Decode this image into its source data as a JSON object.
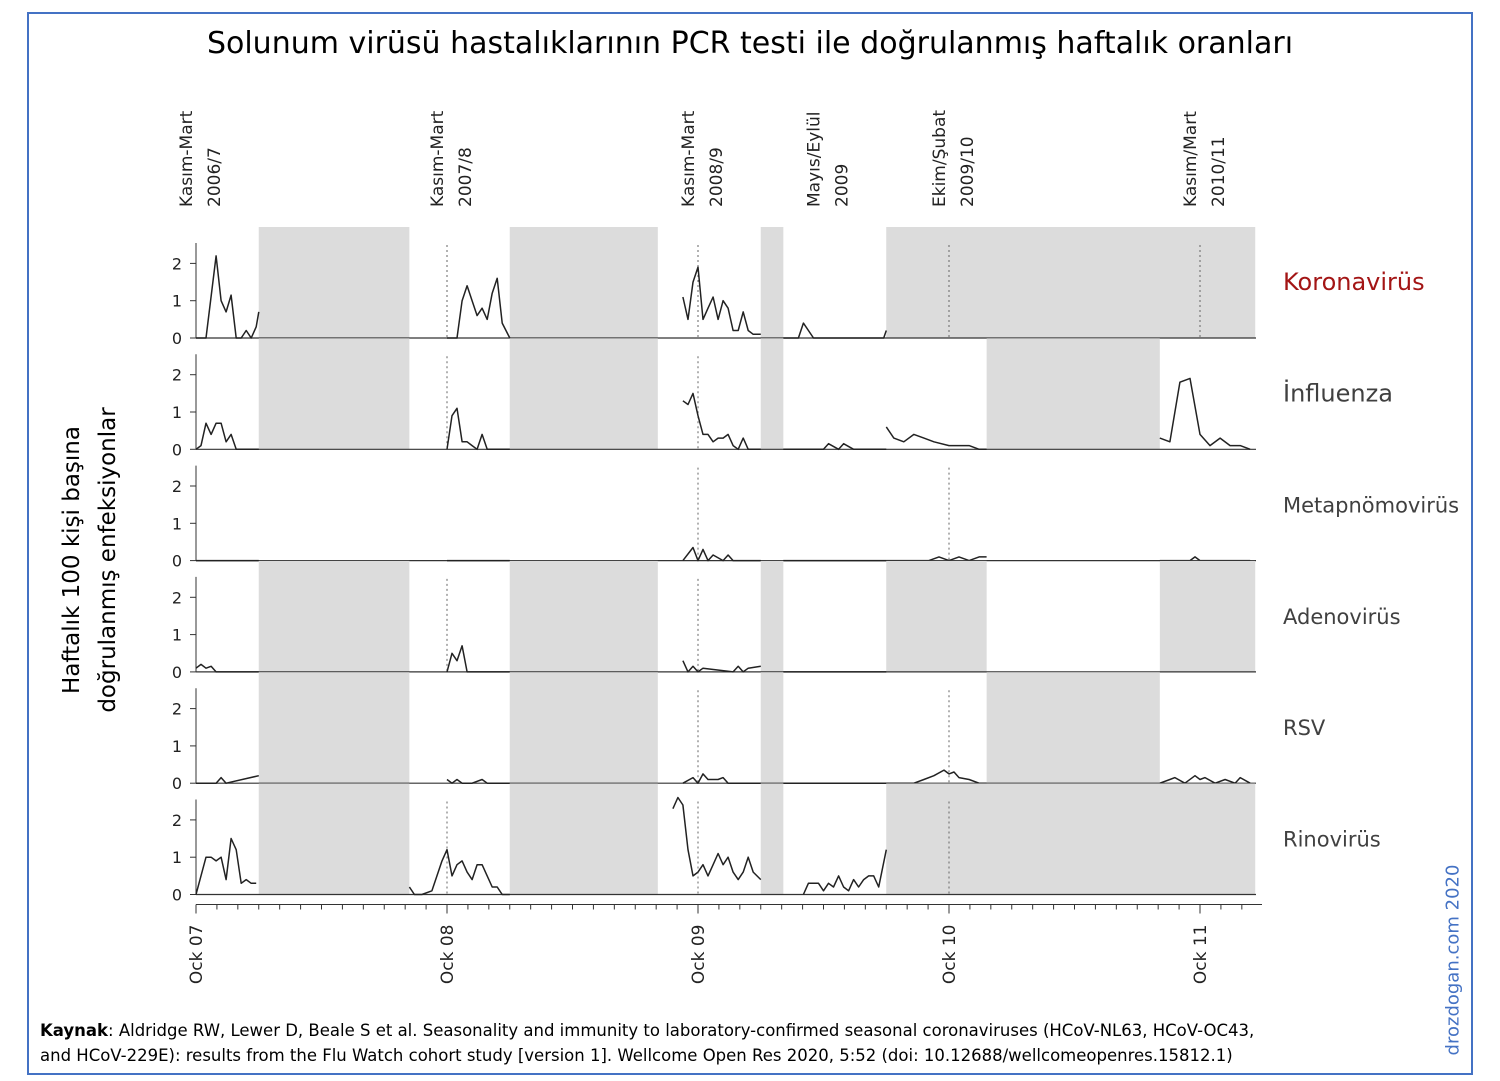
{
  "title": "Solunum virüsü hastalıklarının PCR testi ile doğrulanmış haftalık oranları",
  "ylabel_line1": "Haftalık 100 kişi başına",
  "ylabel_line2": "doğrulanmış enfeksiyonlar",
  "source_prefix": "Kaynak",
  "source_text": ": Aldridge RW, Lewer D, Beale S et al. Seasonality and immunity to laboratory-confirmed seasonal coronaviruses (HCoV-NL63, HCoV-OC43, and HCoV-229E): results from the Flu Watch cohort study [version 1]. Wellcome Open Res 2020, 5:52 (doi: 10.12688/wellcomeopenres.15812.1)",
  "credit": "drozdogan.com 2020",
  "colors": {
    "shade": "#dcdcdc",
    "line": "#222222",
    "coronavirus_label": "#a31515",
    "label": "#404040",
    "credit": "#4472c4"
  },
  "chart_data": {
    "type": "line",
    "title": "Solunum virüsü hastalıklarının PCR testi ile doğrulanmış haftalık oranları",
    "xlabel": "",
    "ylabel": "Haftalık 100 kişi başına doğrulanmış enfeksiyonlar",
    "xlim": [
      0,
      4.25
    ],
    "ylim": [
      0,
      2.5
    ],
    "yticks": [
      0,
      1,
      2
    ],
    "x_unit": "years since Oct 2007",
    "x_ticks": [
      {
        "x": 0,
        "label": "Ock 07"
      },
      {
        "x": 1,
        "label": "Ock 08"
      },
      {
        "x": 2,
        "label": "Ock 09"
      },
      {
        "x": 3,
        "label": "Ock 10"
      },
      {
        "x": 4,
        "label": "Ock 11"
      }
    ],
    "season_labels": [
      {
        "x": 0.0,
        "lines": [
          "Kasım-Mart",
          "2006/7"
        ]
      },
      {
        "x": 1.0,
        "lines": [
          "Kasım-Mart",
          "2007/8"
        ]
      },
      {
        "x": 2.0,
        "lines": [
          "Kasım-Mart",
          "2008/9"
        ]
      },
      {
        "x": 2.5,
        "lines": [
          "Mayıs/Eylül",
          "2009"
        ]
      },
      {
        "x": 3.0,
        "lines": [
          "Ekim/Şubat",
          "2009/10"
        ]
      },
      {
        "x": 4.0,
        "lines": [
          "Kasım/Mart",
          "2010/11"
        ]
      }
    ],
    "dotted_lines": [
      {
        "panel": "Koronavirüs",
        "x": [
          1,
          2,
          3,
          4
        ]
      },
      {
        "panel": "İnfluenza",
        "x": [
          1,
          2
        ]
      },
      {
        "panel": "Metapnömovirüs",
        "x": [
          2,
          3
        ]
      },
      {
        "panel": "Adenovirüs",
        "x": [
          1,
          2
        ]
      },
      {
        "panel": "RSV",
        "x": [
          2,
          3
        ]
      },
      {
        "panel": "Rinovirüs",
        "x": [
          1,
          2,
          3
        ]
      }
    ],
    "shaded_periods_shared": [
      [
        0.25,
        0.85
      ],
      [
        1.25,
        1.84
      ],
      [
        2.25,
        2.34
      ]
    ],
    "series": [
      {
        "name": "Koronavirüs",
        "label_color": "#a31515",
        "shaded": [
          [
            0.25,
            0.85
          ],
          [
            1.25,
            1.84
          ],
          [
            2.25,
            2.34
          ],
          [
            2.75,
            4.22
          ]
        ],
        "segments": [
          {
            "x": [
              0,
              0.04,
              0.08,
              0.1,
              0.12,
              0.14,
              0.16,
              0.18,
              0.2,
              0.22,
              0.24,
              0.25
            ],
            "y": [
              0,
              0,
              2.2,
              1.0,
              0.7,
              1.15,
              0,
              0,
              0.2,
              0,
              0.3,
              0.7
            ]
          },
          {
            "x": [
              1.0,
              1.04,
              1.06,
              1.08,
              1.1,
              1.12,
              1.14,
              1.16,
              1.18,
              1.2,
              1.22,
              1.25
            ],
            "y": [
              0,
              0,
              1.0,
              1.4,
              1.0,
              0.6,
              0.8,
              0.5,
              1.2,
              1.6,
              0.4,
              0
            ]
          },
          {
            "x": [
              1.94,
              1.96,
              1.98,
              2.0,
              2.02,
              2.04,
              2.06,
              2.08,
              2.1,
              2.12,
              2.14,
              2.16,
              2.18,
              2.2,
              2.22,
              2.25
            ],
            "y": [
              1.1,
              0.5,
              1.5,
              1.9,
              0.5,
              0.8,
              1.1,
              0.5,
              1.0,
              0.8,
              0.2,
              0.2,
              0.7,
              0.2,
              0.1,
              0.1
            ]
          },
          {
            "x": [
              2.34,
              2.4,
              2.42,
              2.46,
              2.74,
              2.75
            ],
            "y": [
              0,
              0,
              0.4,
              0,
              0,
              0.2
            ]
          }
        ]
      },
      {
        "name": "İnfluenza",
        "label_color": "#404040",
        "shaded": [
          [
            0.25,
            0.85
          ],
          [
            1.25,
            1.84
          ],
          [
            2.25,
            2.34
          ],
          [
            3.15,
            3.84
          ]
        ],
        "segments": [
          {
            "x": [
              0,
              0.02,
              0.04,
              0.06,
              0.08,
              0.1,
              0.12,
              0.14,
              0.16,
              0.18,
              0.2,
              0.25
            ],
            "y": [
              0,
              0.1,
              0.7,
              0.4,
              0.7,
              0.7,
              0.2,
              0.4,
              0,
              0,
              0,
              0
            ]
          },
          {
            "x": [
              1.0,
              1.02,
              1.04,
              1.06,
              1.08,
              1.1,
              1.12,
              1.14,
              1.16,
              1.18,
              1.25
            ],
            "y": [
              0,
              0.9,
              1.1,
              0.2,
              0.2,
              0.1,
              0,
              0.4,
              0,
              0,
              0
            ]
          },
          {
            "x": [
              1.94,
              1.96,
              1.98,
              2.0,
              2.02,
              2.04,
              2.06,
              2.08,
              2.1,
              2.12,
              2.14,
              2.16,
              2.18,
              2.2,
              2.22,
              2.25
            ],
            "y": [
              1.3,
              1.2,
              1.5,
              0.9,
              0.4,
              0.4,
              0.2,
              0.3,
              0.3,
              0.4,
              0.1,
              0,
              0.3,
              0,
              0,
              0
            ]
          },
          {
            "x": [
              2.34,
              2.5,
              2.52,
              2.56,
              2.58,
              2.62,
              2.75
            ],
            "y": [
              0,
              0,
              0.15,
              0,
              0.15,
              0,
              0
            ]
          },
          {
            "x": [
              2.75,
              2.78,
              2.82,
              2.86,
              2.9,
              2.94,
              3.0,
              3.04,
              3.08,
              3.12,
              3.15
            ],
            "y": [
              0.6,
              0.3,
              0.2,
              0.4,
              0.3,
              0.2,
              0.1,
              0.1,
              0.1,
              0,
              0
            ]
          },
          {
            "x": [
              3.84,
              3.88,
              3.92,
              3.96,
              4.0,
              4.04,
              4.08,
              4.12,
              4.16,
              4.2
            ],
            "y": [
              0.3,
              0.2,
              1.8,
              1.9,
              0.4,
              0.1,
              0.3,
              0.1,
              0.1,
              0
            ]
          }
        ]
      },
      {
        "name": "Metapnömovirüs",
        "label_color": "#404040",
        "shaded": [],
        "segments": [
          {
            "x": [
              0,
              0.25
            ],
            "y": [
              0,
              0
            ]
          },
          {
            "x": [
              1.0,
              1.25
            ],
            "y": [
              0,
              0
            ]
          },
          {
            "x": [
              1.94,
              1.98,
              2.0,
              2.02,
              2.04,
              2.06,
              2.1,
              2.12,
              2.14,
              2.25
            ],
            "y": [
              0,
              0.35,
              0,
              0.3,
              0,
              0.15,
              0,
              0.15,
              0,
              0
            ]
          },
          {
            "x": [
              2.34,
              2.75
            ],
            "y": [
              0,
              0
            ]
          },
          {
            "x": [
              2.75,
              2.92,
              2.96,
              3.0,
              3.04,
              3.08,
              3.12,
              3.15
            ],
            "y": [
              0,
              0,
              0.1,
              0,
              0.1,
              0,
              0.1,
              0.1
            ]
          },
          {
            "x": [
              3.84,
              3.96,
              3.98,
              4.0,
              4.2
            ],
            "y": [
              0,
              0,
              0.1,
              0,
              0
            ]
          }
        ]
      },
      {
        "name": "Adenovirüs",
        "label_color": "#404040",
        "shaded": [
          [
            0.25,
            0.85
          ],
          [
            1.25,
            1.84
          ],
          [
            2.25,
            2.34
          ],
          [
            2.75,
            3.15
          ],
          [
            3.84,
            4.22
          ]
        ],
        "segments": [
          {
            "x": [
              0,
              0.02,
              0.04,
              0.06,
              0.08,
              0.25
            ],
            "y": [
              0.1,
              0.2,
              0.1,
              0.15,
              0,
              0
            ]
          },
          {
            "x": [
              1.0,
              1.02,
              1.04,
              1.06,
              1.08,
              1.1,
              1.25
            ],
            "y": [
              0,
              0.5,
              0.3,
              0.7,
              0,
              0,
              0
            ]
          },
          {
            "x": [
              1.94,
              1.96,
              1.98,
              2.0,
              2.02,
              2.14,
              2.16,
              2.18,
              2.2,
              2.25
            ],
            "y": [
              0.3,
              0,
              0.15,
              0,
              0.1,
              0,
              0.15,
              0,
              0.1,
              0.15
            ]
          },
          {
            "x": [
              2.34,
              2.75
            ],
            "y": [
              0,
              0
            ]
          }
        ]
      },
      {
        "name": "RSV",
        "label_color": "#404040",
        "shaded": [
          [
            0.25,
            0.85
          ],
          [
            1.25,
            1.84
          ],
          [
            2.25,
            2.34
          ],
          [
            3.15,
            3.84
          ]
        ],
        "segments": [
          {
            "x": [
              0,
              0.08,
              0.1,
              0.12,
              0.25
            ],
            "y": [
              0,
              0,
              0.15,
              0,
              0.2
            ]
          },
          {
            "x": [
              1.0,
              1.02,
              1.04,
              1.06,
              1.1,
              1.14,
              1.16,
              1.25
            ],
            "y": [
              0.1,
              0,
              0.1,
              0,
              0,
              0.1,
              0,
              0
            ]
          },
          {
            "x": [
              1.94,
              1.98,
              2.0,
              2.02,
              2.04,
              2.08,
              2.1,
              2.12,
              2.25
            ],
            "y": [
              0,
              0.15,
              0,
              0.25,
              0.1,
              0.1,
              0.15,
              0,
              0
            ]
          },
          {
            "x": [
              2.34,
              2.75
            ],
            "y": [
              0,
              0
            ]
          },
          {
            "x": [
              2.75,
              2.86,
              2.9,
              2.94,
              2.98,
              3.0,
              3.02,
              3.04,
              3.08,
              3.12,
              3.15
            ],
            "y": [
              0,
              0,
              0.1,
              0.2,
              0.35,
              0.25,
              0.3,
              0.15,
              0.1,
              0,
              0
            ]
          },
          {
            "x": [
              3.84,
              3.88,
              3.9,
              3.94,
              3.98,
              4.0,
              4.02,
              4.06,
              4.1,
              4.14,
              4.16,
              4.2
            ],
            "y": [
              0,
              0.1,
              0.15,
              0,
              0.2,
              0.1,
              0.15,
              0,
              0.1,
              0,
              0.15,
              0
            ]
          }
        ]
      },
      {
        "name": "Rinovirüs",
        "label_color": "#404040",
        "shaded": [
          [
            0.25,
            0.85
          ],
          [
            1.25,
            1.84
          ],
          [
            2.25,
            2.34
          ],
          [
            2.75,
            4.22
          ]
        ],
        "segments": [
          {
            "x": [
              0,
              0.04,
              0.06,
              0.08,
              0.1,
              0.12,
              0.14,
              0.16,
              0.18,
              0.2,
              0.22,
              0.24
            ],
            "y": [
              0,
              1.0,
              1.0,
              0.9,
              1.0,
              0.4,
              1.5,
              1.2,
              0.3,
              0.4,
              0.3,
              0.3
            ]
          },
          {
            "x": [
              0.85,
              0.87,
              0.9,
              0.94,
              0.98,
              1.0,
              1.02,
              1.04,
              1.06,
              1.08,
              1.1,
              1.12,
              1.14,
              1.16,
              1.18,
              1.2,
              1.22,
              1.25
            ],
            "y": [
              0.2,
              0,
              0,
              0.1,
              0.9,
              1.2,
              0.5,
              0.8,
              0.9,
              0.6,
              0.4,
              0.8,
              0.8,
              0.5,
              0.2,
              0.2,
              0,
              0
            ]
          },
          {
            "x": [
              1.9,
              1.92,
              1.94,
              1.96,
              1.98,
              2.0,
              2.02,
              2.04,
              2.06,
              2.08,
              2.1,
              2.12,
              2.14,
              2.16,
              2.18,
              2.2,
              2.22,
              2.25
            ],
            "y": [
              2.3,
              2.6,
              2.4,
              1.2,
              0.5,
              0.6,
              0.8,
              0.5,
              0.8,
              1.1,
              0.8,
              1.0,
              0.6,
              0.4,
              0.6,
              1.0,
              0.6,
              0.4
            ]
          },
          {
            "x": [
              2.42,
              2.44,
              2.48,
              2.5,
              2.52,
              2.54,
              2.56,
              2.58,
              2.6,
              2.62,
              2.64,
              2.66,
              2.68,
              2.7,
              2.72,
              2.75
            ],
            "y": [
              0,
              0.3,
              0.3,
              0.1,
              0.3,
              0.2,
              0.5,
              0.2,
              0.1,
              0.4,
              0.2,
              0.4,
              0.5,
              0.5,
              0.2,
              1.2
            ]
          }
        ]
      }
    ]
  }
}
